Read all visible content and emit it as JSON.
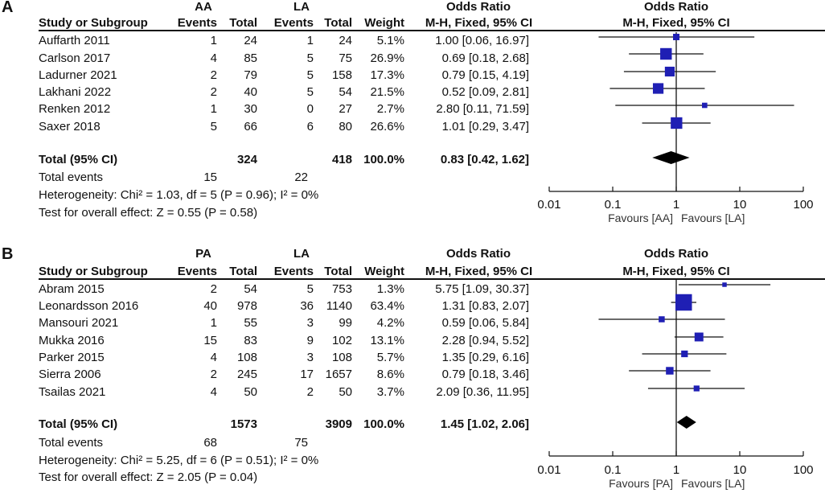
{
  "chart_data": [
    {
      "type": "forest",
      "panel_label": "A",
      "group1": "AA",
      "group2": "LA",
      "headers": {
        "study": "Study or Subgroup",
        "events": "Events",
        "total": "Total",
        "weight": "Weight",
        "or_title": "Odds Ratio",
        "or_method": "M-H, Fixed, 95% CI"
      },
      "studies": [
        {
          "name": "Auffarth 2011",
          "e1": "1",
          "n1": "24",
          "e2": "1",
          "n2": "24",
          "weight": "5.1%",
          "or_text": "1.00 [0.06, 16.97]",
          "or": 1.0,
          "lo": 0.06,
          "hi": 16.97,
          "w": 5.1
        },
        {
          "name": "Carlson 2017",
          "e1": "4",
          "n1": "85",
          "e2": "5",
          "n2": "75",
          "weight": "26.9%",
          "or_text": "0.69 [0.18, 2.68]",
          "or": 0.69,
          "lo": 0.18,
          "hi": 2.68,
          "w": 26.9
        },
        {
          "name": "Ladurner 2021",
          "e1": "2",
          "n1": "79",
          "e2": "5",
          "n2": "158",
          "weight": "17.3%",
          "or_text": "0.79 [0.15, 4.19]",
          "or": 0.79,
          "lo": 0.15,
          "hi": 4.19,
          "w": 17.3
        },
        {
          "name": "Lakhani 2022",
          "e1": "2",
          "n1": "40",
          "e2": "5",
          "n2": "54",
          "weight": "21.5%",
          "or_text": "0.52 [0.09, 2.81]",
          "or": 0.52,
          "lo": 0.09,
          "hi": 2.81,
          "w": 21.5
        },
        {
          "name": "Renken 2012",
          "e1": "1",
          "n1": "30",
          "e2": "0",
          "n2": "27",
          "weight": "2.7%",
          "or_text": "2.80 [0.11, 71.59]",
          "or": 2.8,
          "lo": 0.11,
          "hi": 71.59,
          "w": 2.7
        },
        {
          "name": "Saxer 2018",
          "e1": "5",
          "n1": "66",
          "e2": "6",
          "n2": "80",
          "weight": "26.6%",
          "or_text": "1.01 [0.29, 3.47]",
          "or": 1.01,
          "lo": 0.29,
          "hi": 3.47,
          "w": 26.6
        }
      ],
      "total": {
        "label": "Total (95% CI)",
        "n1": "324",
        "n2": "418",
        "weight": "100.0%",
        "or_text": "0.83 [0.42, 1.62]",
        "or": 0.83,
        "lo": 0.42,
        "hi": 1.62
      },
      "total_events": {
        "label": "Total events",
        "e1": "15",
        "e2": "22"
      },
      "heterogeneity": "Heterogeneity: Chi² = 1.03, df = 5 (P = 0.96); I² = 0%",
      "overall_effect": "Test for overall effect: Z = 0.55 (P = 0.58)",
      "axis": {
        "scale": "log",
        "xlim": [
          0.01,
          100
        ],
        "ticks": [
          0.01,
          0.1,
          1,
          10,
          100
        ],
        "tick_labels": [
          "0.01",
          "0.1",
          "1",
          "10",
          "100"
        ]
      },
      "favours_left": "Favours [AA]",
      "favours_right": "Favours [LA]"
    },
    {
      "type": "forest",
      "panel_label": "B",
      "group1": "PA",
      "group2": "LA",
      "headers": {
        "study": "Study or Subgroup",
        "events": "Events",
        "total": "Total",
        "weight": "Weight",
        "or_title": "Odds Ratio",
        "or_method": "M-H, Fixed, 95% CI"
      },
      "studies": [
        {
          "name": "Abram 2015",
          "e1": "2",
          "n1": "54",
          "e2": "5",
          "n2": "753",
          "weight": "1.3%",
          "or_text": "5.75 [1.09, 30.37]",
          "or": 5.75,
          "lo": 1.09,
          "hi": 30.37,
          "w": 1.3
        },
        {
          "name": "Leonardsson 2016",
          "e1": "40",
          "n1": "978",
          "e2": "36",
          "n2": "1140",
          "weight": "63.4%",
          "or_text": "1.31 [0.83, 2.07]",
          "or": 1.31,
          "lo": 0.83,
          "hi": 2.07,
          "w": 63.4
        },
        {
          "name": "Mansouri 2021",
          "e1": "1",
          "n1": "55",
          "e2": "3",
          "n2": "99",
          "weight": "4.2%",
          "or_text": "0.59 [0.06, 5.84]",
          "or": 0.59,
          "lo": 0.06,
          "hi": 5.84,
          "w": 4.2
        },
        {
          "name": "Mukka 2016",
          "e1": "15",
          "n1": "83",
          "e2": "9",
          "n2": "102",
          "weight": "13.1%",
          "or_text": "2.28 [0.94, 5.52]",
          "or": 2.28,
          "lo": 0.94,
          "hi": 5.52,
          "w": 13.1
        },
        {
          "name": "Parker 2015",
          "e1": "4",
          "n1": "108",
          "e2": "3",
          "n2": "108",
          "weight": "5.7%",
          "or_text": "1.35 [0.29, 6.16]",
          "or": 1.35,
          "lo": 0.29,
          "hi": 6.16,
          "w": 5.7
        },
        {
          "name": "Sierra 2006",
          "e1": "2",
          "n1": "245",
          "e2": "17",
          "n2": "1657",
          "weight": "8.6%",
          "or_text": "0.79 [0.18, 3.46]",
          "or": 0.79,
          "lo": 0.18,
          "hi": 3.46,
          "w": 8.6
        },
        {
          "name": "Tsailas 2021",
          "e1": "4",
          "n1": "50",
          "e2": "2",
          "n2": "50",
          "weight": "3.7%",
          "or_text": "2.09 [0.36, 11.95]",
          "or": 2.09,
          "lo": 0.36,
          "hi": 11.95,
          "w": 3.7
        }
      ],
      "total": {
        "label": "Total (95% CI)",
        "n1": "1573",
        "n2": "3909",
        "weight": "100.0%",
        "or_text": "1.45 [1.02, 2.06]",
        "or": 1.45,
        "lo": 1.02,
        "hi": 2.06
      },
      "total_events": {
        "label": "Total events",
        "e1": "68",
        "e2": "75"
      },
      "heterogeneity": "Heterogeneity: Chi² = 5.25, df = 6 (P = 0.51); I² = 0%",
      "overall_effect": "Test for overall effect: Z = 2.05 (P = 0.04)",
      "axis": {
        "scale": "log",
        "xlim": [
          0.01,
          100
        ],
        "ticks": [
          0.01,
          0.1,
          1,
          10,
          100
        ],
        "tick_labels": [
          "0.01",
          "0.1",
          "1",
          "10",
          "100"
        ]
      },
      "favours_left": "Favours [PA]",
      "favours_right": "Favours [LA]"
    }
  ],
  "colors": {
    "marker": "#1f1fb4",
    "diamond": "#000000",
    "text": "#111111"
  }
}
